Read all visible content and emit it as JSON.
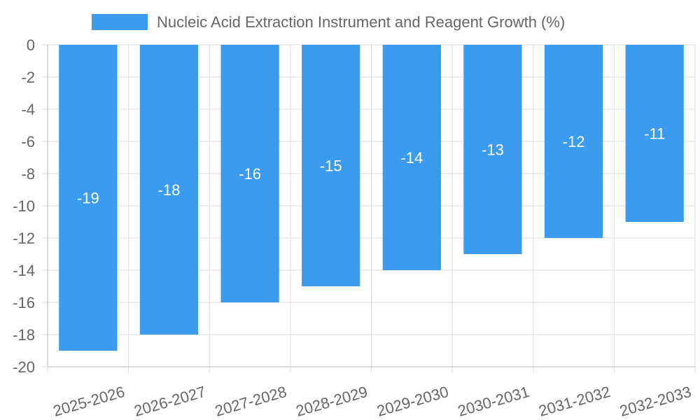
{
  "chart_data": {
    "type": "bar",
    "categories": [
      "2025-2026",
      "2026-2027",
      "2027-2028",
      "2028-2029",
      "2029-2030",
      "2030-2031",
      "2031-2032",
      "2032-2033"
    ],
    "series": [
      {
        "name": "Nucleic Acid Extraction Instrument and Reagent Growth (%)",
        "values": [
          -19,
          -18,
          -16,
          -15,
          -14,
          -13,
          -12,
          -11
        ],
        "color": "#3a9bef"
      }
    ],
    "data_labels": [
      "-19",
      "-18",
      "-16",
      "-15",
      "-14",
      "-13",
      "-12",
      "-11"
    ],
    "y_ticks": [
      "0",
      "-2",
      "-4",
      "-6",
      "-8",
      "-10",
      "-12",
      "-14",
      "-16",
      "-18",
      "-20"
    ],
    "ylim": [
      -20,
      0
    ],
    "grid": true,
    "legend_position": "top"
  }
}
